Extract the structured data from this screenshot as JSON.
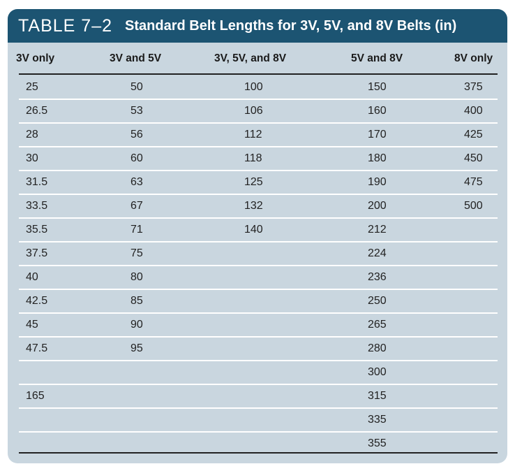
{
  "table": {
    "label": "TABLE 7–2",
    "title": "Standard Belt Lengths for 3V, 5V, and 8V Belts (in)",
    "headers": [
      "3V only",
      "3V and 5V",
      "3V, 5V, and 8V",
      "5V and 8V",
      "8V only"
    ],
    "rows": [
      [
        "25",
        "50",
        "100",
        "150",
        "375"
      ],
      [
        "26.5",
        "53",
        "106",
        "160",
        "400"
      ],
      [
        "28",
        "56",
        "112",
        "170",
        "425"
      ],
      [
        "30",
        "60",
        "118",
        "180",
        "450"
      ],
      [
        "31.5",
        "63",
        "125",
        "190",
        "475"
      ],
      [
        "33.5",
        "67",
        "132",
        "200",
        "500"
      ],
      [
        "35.5",
        "71",
        "140",
        "212",
        ""
      ],
      [
        "37.5",
        "75",
        "",
        "224",
        ""
      ],
      [
        "40",
        "80",
        "",
        "236",
        ""
      ],
      [
        "42.5",
        "85",
        "",
        "250",
        ""
      ],
      [
        "45",
        "90",
        "",
        "265",
        ""
      ],
      [
        "47.5",
        "95",
        "",
        "280",
        ""
      ],
      [
        "",
        "",
        "",
        "300",
        ""
      ],
      [
        "165",
        "",
        "",
        "315",
        ""
      ],
      [
        "",
        "",
        "",
        "335",
        ""
      ],
      [
        "",
        "",
        "",
        "355",
        ""
      ]
    ],
    "colors": {
      "title_bar": "#1c5472",
      "panel": "#c9d6df",
      "row_separator": "#ffffff",
      "rule": "#222222"
    }
  }
}
